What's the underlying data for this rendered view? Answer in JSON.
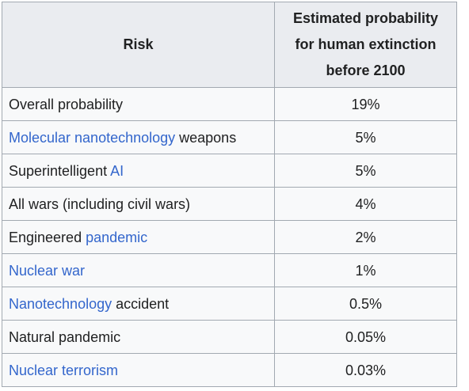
{
  "table": {
    "headers": {
      "risk": "Risk",
      "probability_line1": "Estimated probability",
      "probability_line2": "for human extinction",
      "probability_line3": "before 2100"
    },
    "rows": [
      {
        "pre": "",
        "link": "",
        "post": "Overall probability",
        "value": "19%"
      },
      {
        "pre": "",
        "link": "Molecular nanotechnology",
        "post": " weapons",
        "value": "5%"
      },
      {
        "pre": "Superintelligent ",
        "link": "AI",
        "post": "",
        "value": "5%"
      },
      {
        "pre": "All wars (including civil wars)",
        "link": "",
        "post": "",
        "value": "4%"
      },
      {
        "pre": "Engineered ",
        "link": "pandemic",
        "post": "",
        "value": "2%"
      },
      {
        "pre": "",
        "link": "Nuclear war",
        "post": "",
        "value": "1%"
      },
      {
        "pre": "",
        "link": "Nanotechnology",
        "post": " accident",
        "value": "0.5%"
      },
      {
        "pre": "Natural pandemic",
        "link": "",
        "post": "",
        "value": "0.05%"
      },
      {
        "pre": "",
        "link": "Nuclear terrorism",
        "post": "",
        "value": "0.03%"
      }
    ]
  },
  "colors": {
    "link": "#3366cc",
    "text": "#202122",
    "header_bg": "#eaecf0",
    "cell_bg": "#f8f9fa",
    "border": "#a2a9b1"
  }
}
